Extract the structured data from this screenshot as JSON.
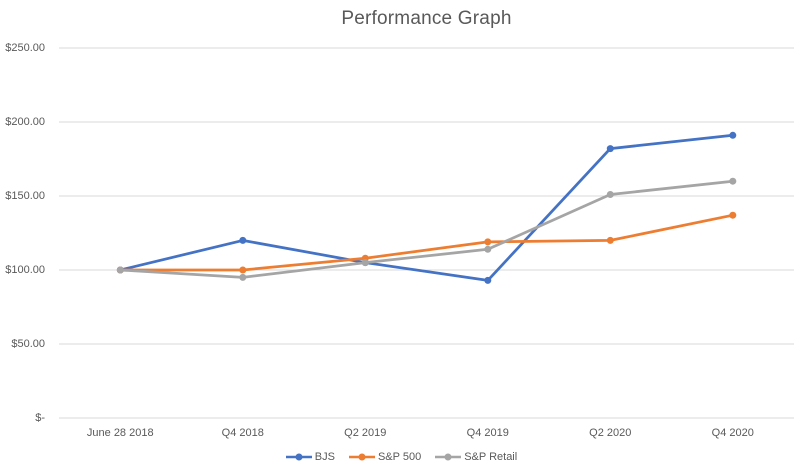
{
  "chart_data": {
    "type": "line",
    "title": "Performance Graph",
    "categories": [
      "June 28 2018",
      "Q4 2018",
      "Q2 2019",
      "Q4 2019",
      "Q2 2020",
      "Q4 2020"
    ],
    "series": [
      {
        "name": "BJS",
        "color": "#4472C4",
        "values": [
          100,
          120,
          105,
          93,
          182,
          191
        ]
      },
      {
        "name": "S&P 500",
        "color": "#ED7D31",
        "values": [
          100,
          100,
          108,
          119,
          120,
          137
        ]
      },
      {
        "name": "S&P Retail",
        "color": "#A5A5A5",
        "values": [
          100,
          95,
          105,
          114,
          151,
          160
        ]
      }
    ],
    "y_axis": {
      "ticks": [
        {
          "label": "$250.00",
          "value": 250
        },
        {
          "label": "$200.00",
          "value": 200
        },
        {
          "label": "$150.00",
          "value": 150
        },
        {
          "label": "$100.00",
          "value": 100
        },
        {
          "label": "$50.00",
          "value": 50
        },
        {
          "label": "$-",
          "value": 0
        }
      ],
      "min": 0,
      "max": 250
    },
    "legend_position": "bottom",
    "grid": true,
    "colors": {
      "gridline": "#D9D9D9",
      "text": "#595959",
      "background": "#FFFFFF"
    }
  }
}
